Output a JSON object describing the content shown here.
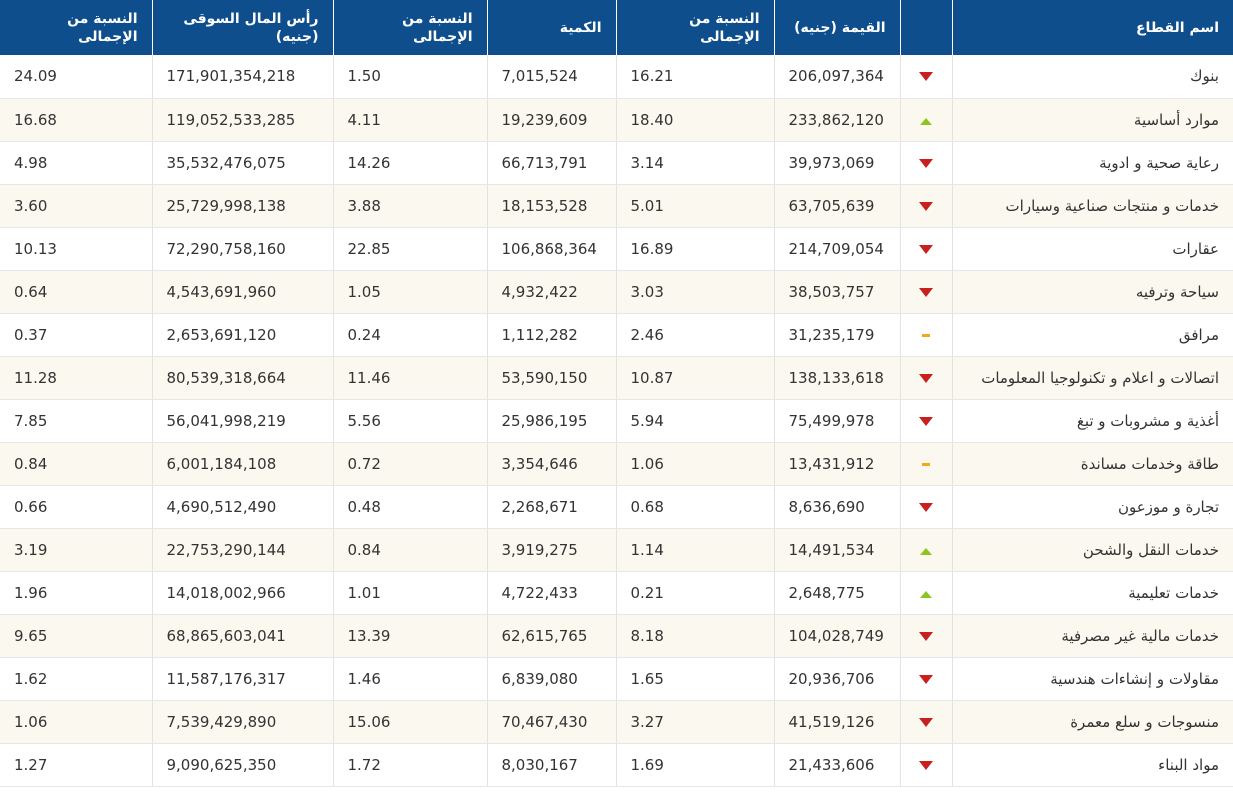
{
  "headers": {
    "sector": "اسم القطاع",
    "trend": "",
    "value": "القيمة (جنيه)",
    "value_pct": "النسبة من الإجمالى",
    "volume": "الكمية",
    "volume_pct": "النسبة من الإجمالى",
    "market_cap": "رأس المال السوقى (جنيه)",
    "market_cap_pct": "النسبة من الإجمالى"
  },
  "trend_colors": {
    "down": "#c8201f",
    "up": "#8fc31f",
    "flat": "#f3a81b"
  },
  "rows": [
    {
      "sector": "بنوك",
      "trend": "down",
      "value": "206,097,364",
      "value_pct": "16.21",
      "volume": "7,015,524",
      "volume_pct": "1.50",
      "market_cap": "171,901,354,218",
      "market_cap_pct": "24.09"
    },
    {
      "sector": "موارد أساسية",
      "trend": "up",
      "value": "233,862,120",
      "value_pct": "18.40",
      "volume": "19,239,609",
      "volume_pct": "4.11",
      "market_cap": "119,052,533,285",
      "market_cap_pct": "16.68"
    },
    {
      "sector": "رعاية صحية و ادوية",
      "trend": "down",
      "value": "39,973,069",
      "value_pct": "3.14",
      "volume": "66,713,791",
      "volume_pct": "14.26",
      "market_cap": "35,532,476,075",
      "market_cap_pct": "4.98"
    },
    {
      "sector": "خدمات و منتجات صناعية وسيارات",
      "trend": "down",
      "value": "63,705,639",
      "value_pct": "5.01",
      "volume": "18,153,528",
      "volume_pct": "3.88",
      "market_cap": "25,729,998,138",
      "market_cap_pct": "3.60"
    },
    {
      "sector": "عقارات",
      "trend": "down",
      "value": "214,709,054",
      "value_pct": "16.89",
      "volume": "106,868,364",
      "volume_pct": "22.85",
      "market_cap": "72,290,758,160",
      "market_cap_pct": "10.13"
    },
    {
      "sector": "سياحة وترفيه",
      "trend": "down",
      "value": "38,503,757",
      "value_pct": "3.03",
      "volume": "4,932,422",
      "volume_pct": "1.05",
      "market_cap": "4,543,691,960",
      "market_cap_pct": "0.64"
    },
    {
      "sector": "مرافق",
      "trend": "flat",
      "value": "31,235,179",
      "value_pct": "2.46",
      "volume": "1,112,282",
      "volume_pct": "0.24",
      "market_cap": "2,653,691,120",
      "market_cap_pct": "0.37"
    },
    {
      "sector": "اتصالات و اعلام و تكنولوجيا المعلومات",
      "trend": "down",
      "value": "138,133,618",
      "value_pct": "10.87",
      "volume": "53,590,150",
      "volume_pct": "11.46",
      "market_cap": "80,539,318,664",
      "market_cap_pct": "11.28"
    },
    {
      "sector": "أغذية و مشروبات و تبغ",
      "trend": "down",
      "value": "75,499,978",
      "value_pct": "5.94",
      "volume": "25,986,195",
      "volume_pct": "5.56",
      "market_cap": "56,041,998,219",
      "market_cap_pct": "7.85"
    },
    {
      "sector": "طاقة وخدمات مساندة",
      "trend": "flat",
      "value": "13,431,912",
      "value_pct": "1.06",
      "volume": "3,354,646",
      "volume_pct": "0.72",
      "market_cap": "6,001,184,108",
      "market_cap_pct": "0.84"
    },
    {
      "sector": "تجارة و موزعون",
      "trend": "down",
      "value": "8,636,690",
      "value_pct": "0.68",
      "volume": "2,268,671",
      "volume_pct": "0.48",
      "market_cap": "4,690,512,490",
      "market_cap_pct": "0.66"
    },
    {
      "sector": "خدمات النقل والشحن",
      "trend": "up",
      "value": "14,491,534",
      "value_pct": "1.14",
      "volume": "3,919,275",
      "volume_pct": "0.84",
      "market_cap": "22,753,290,144",
      "market_cap_pct": "3.19"
    },
    {
      "sector": "خدمات تعليمية",
      "trend": "up",
      "value": "2,648,775",
      "value_pct": "0.21",
      "volume": "4,722,433",
      "volume_pct": "1.01",
      "market_cap": "14,018,002,966",
      "market_cap_pct": "1.96"
    },
    {
      "sector": "خدمات مالية غير مصرفية",
      "trend": "down",
      "value": "104,028,749",
      "value_pct": "8.18",
      "volume": "62,615,765",
      "volume_pct": "13.39",
      "market_cap": "68,865,603,041",
      "market_cap_pct": "9.65"
    },
    {
      "sector": "مقاولات و إنشاءات هندسية",
      "trend": "down",
      "value": "20,936,706",
      "value_pct": "1.65",
      "volume": "6,839,080",
      "volume_pct": "1.46",
      "market_cap": "11,587,176,317",
      "market_cap_pct": "1.62"
    },
    {
      "sector": "منسوجات و سلع معمرة",
      "trend": "down",
      "value": "41,519,126",
      "value_pct": "3.27",
      "volume": "70,467,430",
      "volume_pct": "15.06",
      "market_cap": "7,539,429,890",
      "market_cap_pct": "1.06"
    },
    {
      "sector": "مواد البناء",
      "trend": "down",
      "value": "21,433,606",
      "value_pct": "1.69",
      "volume": "8,030,167",
      "volume_pct": "1.72",
      "market_cap": "9,090,625,350",
      "market_cap_pct": "1.27"
    }
  ]
}
